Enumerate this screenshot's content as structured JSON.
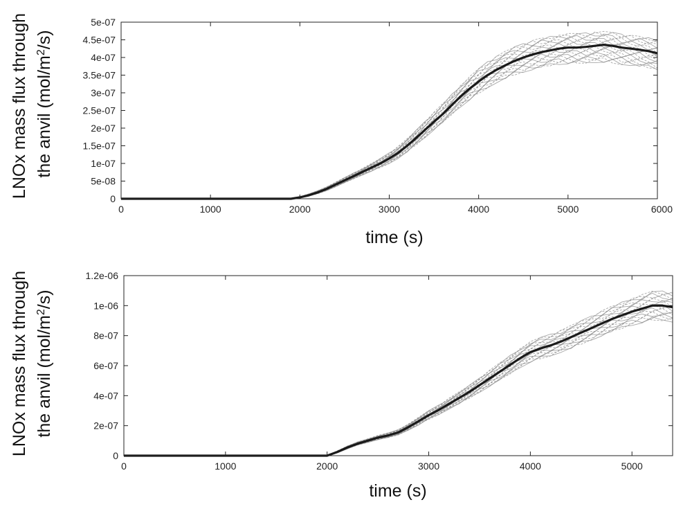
{
  "chart_data": [
    {
      "type": "line",
      "title": "",
      "xlabel": "time (s)",
      "ylabel_line1": "LNOx mass flux through",
      "ylabel_line2_prefix": "the anvil (mol/m",
      "ylabel_line2_sup": "2",
      "ylabel_line2_suffix": "/s)",
      "xlim": [
        0,
        6000
      ],
      "ylim": [
        0,
        5e-07
      ],
      "xticks": [
        0,
        1000,
        2000,
        3000,
        4000,
        5000,
        6000
      ],
      "xtick_labels": [
        "0",
        "1000",
        "2000",
        "3000",
        "4000",
        "5000",
        "6000"
      ],
      "yticks": [
        0,
        5e-08,
        1e-07,
        1.5e-07,
        2e-07,
        2.5e-07,
        3e-07,
        3.5e-07,
        4e-07,
        4.5e-07,
        5e-07
      ],
      "ytick_labels": [
        "0",
        "5e-08",
        "1e-07",
        "1.5e-07",
        "2e-07",
        "2.5e-07",
        "3e-07",
        "3.5e-07",
        "4e-07",
        "4.5e-07",
        "5e-07"
      ],
      "grid": false,
      "series": [
        {
          "style": "thick-solid",
          "color": "#1a1a1a",
          "x": [
            0,
            1900,
            2000,
            2100,
            2200,
            2300,
            2400,
            2500,
            2600,
            2700,
            2800,
            2900,
            3000,
            3100,
            3200,
            3300,
            3400,
            3500,
            3600,
            3700,
            3800,
            3900,
            4000,
            4100,
            4200,
            4300,
            4400,
            4500,
            4600,
            4700,
            4800,
            4900,
            5000,
            5100,
            5200,
            5300,
            5400,
            5500,
            5600,
            5700,
            5800,
            5900,
            6000
          ],
          "y": [
            0,
            0,
            4e-09,
            1e-08,
            1.8e-08,
            2.8e-08,
            4e-08,
            5.2e-08,
            6.4e-08,
            7.6e-08,
            8.8e-08,
            1e-07,
            1.14e-07,
            1.3e-07,
            1.5e-07,
            1.72e-07,
            1.95e-07,
            2.18e-07,
            2.4e-07,
            2.65e-07,
            2.9e-07,
            3.12e-07,
            3.32e-07,
            3.5e-07,
            3.65e-07,
            3.78e-07,
            3.9e-07,
            4e-07,
            4.08e-07,
            4.15e-07,
            4.2e-07,
            4.25e-07,
            4.28e-07,
            4.28e-07,
            4.3e-07,
            4.33e-07,
            4.36e-07,
            4.33e-07,
            4.28e-07,
            4.25e-07,
            4.22e-07,
            4.18e-07,
            4.12e-07
          ]
        },
        {
          "style": "ensemble-band",
          "color": "#8a8a8a",
          "x": [
            0,
            1900,
            2000,
            2100,
            2200,
            2300,
            2400,
            2500,
            2600,
            2700,
            2800,
            2900,
            3000,
            3100,
            3200,
            3300,
            3400,
            3500,
            3600,
            3700,
            3800,
            3900,
            4000,
            4100,
            4200,
            4300,
            4400,
            4500,
            4600,
            4700,
            4800,
            4900,
            5000,
            5100,
            5200,
            5300,
            5400,
            5500,
            5600,
            5700,
            5800,
            5900,
            6000
          ],
          "y_low": [
            0,
            0,
            2e-09,
            7e-09,
            1.4e-08,
            2.3e-08,
            3.4e-08,
            4.5e-08,
            5.6e-08,
            6.7e-08,
            7.8e-08,
            8.8e-08,
            1e-07,
            1.14e-07,
            1.32e-07,
            1.52e-07,
            1.73e-07,
            1.95e-07,
            2.15e-07,
            2.38e-07,
            2.6e-07,
            2.8e-07,
            2.98e-07,
            3.14e-07,
            3.28e-07,
            3.4e-07,
            3.5e-07,
            3.58e-07,
            3.65e-07,
            3.71e-07,
            3.76e-07,
            3.8e-07,
            3.82e-07,
            3.83e-07,
            3.84e-07,
            3.85e-07,
            3.86e-07,
            3.84e-07,
            3.8e-07,
            3.77e-07,
            3.74e-07,
            3.7e-07,
            3.65e-07
          ],
          "y_high": [
            0,
            0,
            6e-09,
            1.4e-08,
            2.3e-08,
            3.4e-08,
            4.7e-08,
            6e-08,
            7.3e-08,
            8.6e-08,
            1e-07,
            1.14e-07,
            1.3e-07,
            1.48e-07,
            1.7e-07,
            1.94e-07,
            2.2e-07,
            2.45e-07,
            2.7e-07,
            2.96e-07,
            3.22e-07,
            3.46e-07,
            3.68e-07,
            3.88e-07,
            4.04e-07,
            4.18e-07,
            4.3e-07,
            4.4e-07,
            4.48e-07,
            4.55e-07,
            4.6e-07,
            4.65e-07,
            4.68e-07,
            4.68e-07,
            4.7e-07,
            4.72e-07,
            4.74e-07,
            4.71e-07,
            4.66e-07,
            4.63e-07,
            4.6e-07,
            4.56e-07,
            4.52e-07
          ]
        }
      ]
    },
    {
      "type": "line",
      "title": "",
      "xlabel": "time (s)",
      "ylabel_line1": "LNOx mass flux through",
      "ylabel_line2_prefix": "the anvil (mol/m",
      "ylabel_line2_sup": "2",
      "ylabel_line2_suffix": "/s)",
      "xlim": [
        0,
        5400
      ],
      "ylim": [
        0,
        1.2e-06
      ],
      "xticks": [
        0,
        1000,
        2000,
        3000,
        4000,
        5000
      ],
      "xtick_labels": [
        "0",
        "1000",
        "2000",
        "3000",
        "4000",
        "5000"
      ],
      "yticks": [
        0,
        2e-07,
        4e-07,
        6e-07,
        8e-07,
        1e-06,
        1.2e-06
      ],
      "ytick_labels": [
        "0",
        "2e-07",
        "4e-07",
        "6e-07",
        "8e-07",
        "1e-06",
        "1.2e-06"
      ],
      "grid": false,
      "series": [
        {
          "style": "thick-solid",
          "color": "#1a1a1a",
          "x": [
            0,
            2000,
            2100,
            2200,
            2300,
            2400,
            2500,
            2600,
            2700,
            2800,
            2900,
            3000,
            3100,
            3200,
            3300,
            3400,
            3500,
            3600,
            3700,
            3800,
            3900,
            4000,
            4100,
            4200,
            4300,
            4400,
            4500,
            4600,
            4700,
            4800,
            4900,
            5000,
            5100,
            5200,
            5300,
            5400
          ],
          "y": [
            0,
            0,
            2.5e-08,
            5.5e-08,
            8e-08,
            1e-07,
            1.2e-07,
            1.35e-07,
            1.55e-07,
            1.9e-07,
            2.3e-07,
            2.7e-07,
            3.05e-07,
            3.45e-07,
            3.85e-07,
            4.25e-07,
            4.7e-07,
            5.15e-07,
            5.6e-07,
            6.05e-07,
            6.5e-07,
            6.9e-07,
            7.15e-07,
            7.35e-07,
            7.6e-07,
            7.9e-07,
            8.2e-07,
            8.5e-07,
            8.8e-07,
            9.1e-07,
            9.35e-07,
            9.6e-07,
            9.8e-07,
            1e-06,
            1e-06,
            9.9e-07
          ]
        },
        {
          "style": "ensemble-band",
          "color": "#8a8a8a",
          "x": [
            0,
            2000,
            2100,
            2200,
            2300,
            2400,
            2500,
            2600,
            2700,
            2800,
            2900,
            3000,
            3100,
            3200,
            3300,
            3400,
            3500,
            3600,
            3700,
            3800,
            3900,
            4000,
            4100,
            4200,
            4300,
            4400,
            4500,
            4600,
            4700,
            4800,
            4900,
            5000,
            5100,
            5200,
            5300,
            5400
          ],
          "y_low": [
            0,
            0,
            1.8e-08,
            4.5e-08,
            7e-08,
            8.8e-08,
            1.06e-07,
            1.2e-07,
            1.38e-07,
            1.7e-07,
            2.05e-07,
            2.42e-07,
            2.74e-07,
            3.1e-07,
            3.46e-07,
            3.82e-07,
            4.22e-07,
            4.62e-07,
            5.02e-07,
            5.44e-07,
            5.86e-07,
            6.22e-07,
            6.46e-07,
            6.65e-07,
            6.88e-07,
            7.14e-07,
            7.42e-07,
            7.7e-07,
            7.97e-07,
            8.24e-07,
            8.46e-07,
            8.68e-07,
            8.85e-07,
            9.02e-07,
            9e-07,
            8.9e-07
          ],
          "y_high": [
            0,
            0,
            3.2e-08,
            6.5e-08,
            9.2e-08,
            1.13e-07,
            1.35e-07,
            1.52e-07,
            1.74e-07,
            2.12e-07,
            2.56e-07,
            3e-07,
            3.38e-07,
            3.82e-07,
            4.26e-07,
            4.7e-07,
            5.2e-07,
            5.7e-07,
            6.2e-07,
            6.68e-07,
            7.16e-07,
            7.6e-07,
            7.88e-07,
            8.1e-07,
            8.36e-07,
            8.68e-07,
            9e-07,
            9.32e-07,
            9.64e-07,
            9.96e-07,
            1.024e-06,
            1.052e-06,
            1.074e-06,
            1.096e-06,
            1.098e-06,
            1.09e-06
          ]
        }
      ]
    }
  ]
}
